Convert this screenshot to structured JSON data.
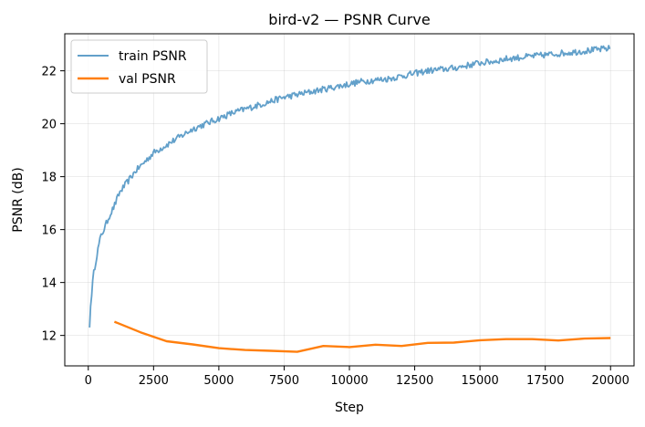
{
  "chart_data": {
    "type": "line",
    "title": "bird-v2 — PSNR Curve",
    "xlabel": "Step",
    "ylabel": "PSNR (dB)",
    "xlim": [
      -900,
      20900
    ],
    "ylim": [
      10.85,
      23.4
    ],
    "xticks": [
      0,
      2500,
      5000,
      7500,
      10000,
      12500,
      15000,
      17500,
      20000
    ],
    "xtick_labels": [
      "0",
      "2500",
      "5000",
      "7500",
      "10000",
      "12500",
      "15000",
      "17500",
      "20000"
    ],
    "yticks": [
      12,
      14,
      16,
      18,
      20,
      22
    ],
    "ytick_labels": [
      "12",
      "14",
      "16",
      "18",
      "20",
      "22"
    ],
    "grid": true,
    "legend_position": "top-left",
    "series": [
      {
        "name": "train PSNR",
        "color": "#1f77b4",
        "opacity": 0.7,
        "noise_amplitude": 0.12,
        "x": [
          50,
          100,
          200,
          300,
          400,
          500,
          600,
          800,
          1000,
          1200,
          1500,
          1800,
          2000,
          2500,
          3000,
          3500,
          4000,
          4500,
          5000,
          5500,
          6000,
          6500,
          7000,
          7500,
          8000,
          8500,
          9000,
          9500,
          10000,
          10500,
          11000,
          11500,
          12000,
          12500,
          13000,
          13500,
          14000,
          14500,
          15000,
          15500,
          16000,
          16500,
          17000,
          17500,
          18000,
          18500,
          19000,
          19500,
          20000
        ],
        "y": [
          12.3,
          13.3,
          14.3,
          14.9,
          15.4,
          15.8,
          16.0,
          16.5,
          16.9,
          17.4,
          17.8,
          18.2,
          18.4,
          18.9,
          19.2,
          19.5,
          19.8,
          20.0,
          20.2,
          20.4,
          20.55,
          20.7,
          20.85,
          21.0,
          21.1,
          21.2,
          21.3,
          21.4,
          21.5,
          21.6,
          21.65,
          21.7,
          21.8,
          21.9,
          22.0,
          22.05,
          22.1,
          22.2,
          22.3,
          22.35,
          22.45,
          22.5,
          22.55,
          22.6,
          22.65,
          22.7,
          22.75,
          22.8,
          22.85
        ]
      },
      {
        "name": "val PSNR",
        "color": "#ff7f0e",
        "opacity": 1,
        "x": [
          1000,
          2000,
          3000,
          4000,
          5000,
          6000,
          7000,
          8000,
          9000,
          10000,
          11000,
          12000,
          13000,
          14000,
          15000,
          16000,
          17000,
          18000,
          19000,
          20000
        ],
        "y": [
          12.52,
          12.12,
          11.78,
          11.66,
          11.52,
          11.45,
          11.42,
          11.38,
          11.6,
          11.56,
          11.65,
          11.6,
          11.72,
          11.73,
          11.82,
          11.86,
          11.86,
          11.81,
          11.88,
          11.9
        ]
      }
    ]
  }
}
